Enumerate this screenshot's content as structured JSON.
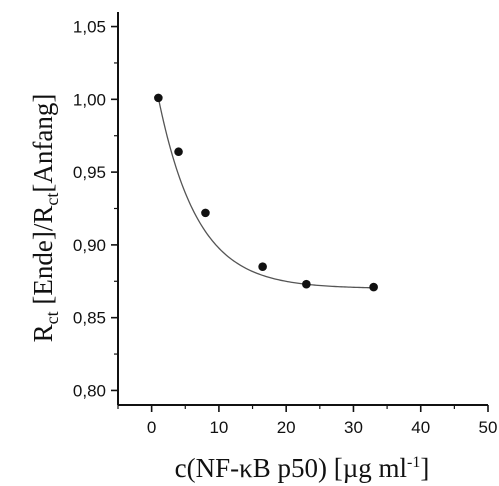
{
  "chart_data": {
    "type": "scatter",
    "xlabel": {
      "prefix": "c(NF-κB p50) [µg ml",
      "sup": "-1",
      "suffix": "]"
    },
    "ylabel": {
      "r1": "R",
      "sub1": "ct",
      "mid": " [Ende]/R",
      "sub2": "ct",
      "end": "[Anfang]"
    },
    "xlim": [
      -5,
      50
    ],
    "ylim": [
      0.79,
      1.06
    ],
    "xticks": [
      0,
      10,
      20,
      30,
      40,
      50
    ],
    "xtick_labels": [
      "0",
      "10",
      "20",
      "30",
      "40",
      "50"
    ],
    "yticks": [
      0.8,
      0.85,
      0.9,
      0.95,
      1.0,
      1.05
    ],
    "ytick_labels": [
      "0,80",
      "0,85",
      "0,90",
      "0,95",
      "1,00",
      "1,05"
    ],
    "grid": false,
    "series": [
      {
        "x": [
          1,
          4,
          8,
          16.5,
          23,
          33
        ],
        "y": [
          1.001,
          0.964,
          0.922,
          0.885,
          0.873,
          0.871
        ]
      }
    ],
    "fit_curve": {
      "type": "exponential-decay",
      "x_range": [
        1,
        33
      ]
    },
    "colors": {
      "axis": "#111111",
      "points": "#111111",
      "fit": "#555555"
    }
  }
}
